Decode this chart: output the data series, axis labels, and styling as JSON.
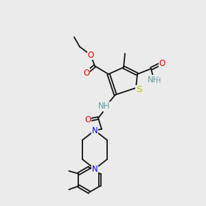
{
  "bg_color": "#ebebeb",
  "bond_color": "#1a1a1a",
  "atom_colors": {
    "N": "#0000ee",
    "O": "#ee0000",
    "S": "#bbbb00",
    "NH": "#5f9ea0",
    "C": "#1a1a1a"
  },
  "figsize": [
    3.0,
    3.0
  ],
  "dpi": 100
}
